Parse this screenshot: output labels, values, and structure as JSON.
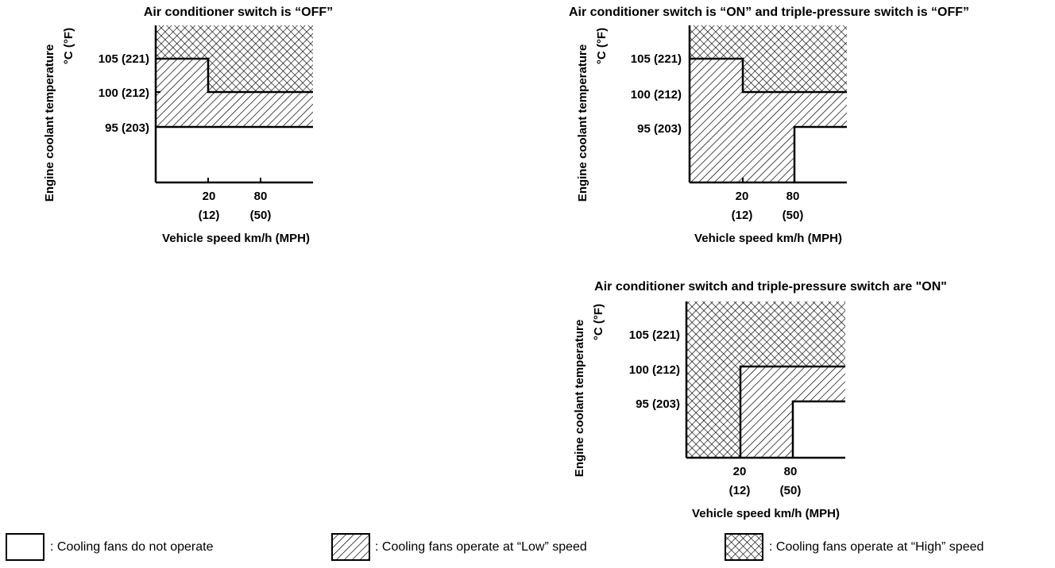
{
  "diagram": {
    "y_axis_label": "Engine coolant temperature",
    "y_axis_unit": "°C (°F)",
    "x_axis_label": "Vehicle speed km/h (MPH)",
    "y_ticks": [
      "105 (221)",
      "100 (212)",
      "95 (203)"
    ],
    "x_ticks": [
      {
        "top": "20",
        "bottom": "(12)"
      },
      {
        "top": "80",
        "bottom": "(50)"
      }
    ],
    "charts": [
      {
        "title": "Air conditioner switch is “OFF”",
        "regions": "no operation below 95 °C; Low from 95 °C (to 105 °C up to 20 km/h, to 100 °C above 20 km/h); High above"
      },
      {
        "title": "Air conditioner switch is “ON” and triple-pressure switch is “OFF”",
        "regions": "Low at all temperatures below 80 km/h; no operation below 95 °C above 80 km/h; High above 105 °C up to 20 km/h and above 100 °C beyond"
      },
      {
        "title": "Air conditioner switch and triple-pressure switch are \"ON\"",
        "regions": "High at all temperatures up to 20 km/h; Low between 20 and 80 km/h up to 100 °C; no operation below 95 °C above 80 km/h; High above 100 °C beyond 20 km/h"
      }
    ],
    "legend": [
      {
        "pattern": "none",
        "label": ": Cooling fans do not operate"
      },
      {
        "pattern": "diagonal",
        "label": ": Cooling fans operate at “Low” speed"
      },
      {
        "pattern": "crosshatch",
        "label": ": Cooling fans operate at “High” speed"
      }
    ]
  }
}
